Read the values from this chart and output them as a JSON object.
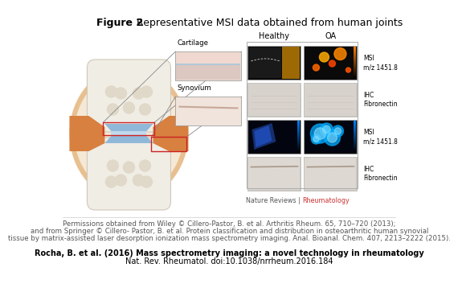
{
  "title_bold": "Figure 2",
  "title_normal": " Representative MSI data obtained from human joints",
  "title_fontsize": 9,
  "col_labels": [
    "Healthy",
    "OA"
  ],
  "row_labels_right": [
    "MSI\nm/z 1451.8",
    "IHC\nFibronectin",
    "MSI\nm/z 1451.8",
    "IHC\nFibronectin"
  ],
  "tissue_labels": [
    "Cartilage",
    "Synovium"
  ],
  "permissions_line1": "Permissions obtained from Wiley © Cillero-Pastor, B. et al. Arthritis Rheum. 65, 710–720 (2013);",
  "permissions_line2": "and from Springer © Cillero- Pastor, B. et al. Protein classification and distribution in osteoarthritic human synovial",
  "permissions_line3": "tissue by matrix-assisted laser desorption ionization mass spectrometry imaging. Anal. Bioanal. Chem. 407, 2213–2222 (2015).",
  "citation_bold": "Rocha, B. et al. (2016) Mass spectrometry imaging: a novel technology in rheumatology",
  "citation_normal": "Nat. Rev. Rheumatol. doi:10.1038/nrrheum.2016.184",
  "nature_reviews_grey": "Nature Reviews | ",
  "nature_reviews_red": "Rheumatology",
  "bg_color": "#ffffff",
  "permissions_fontsize": 6.2,
  "citation_fontsize": 7.0,
  "nr_fontsize": 5.8
}
